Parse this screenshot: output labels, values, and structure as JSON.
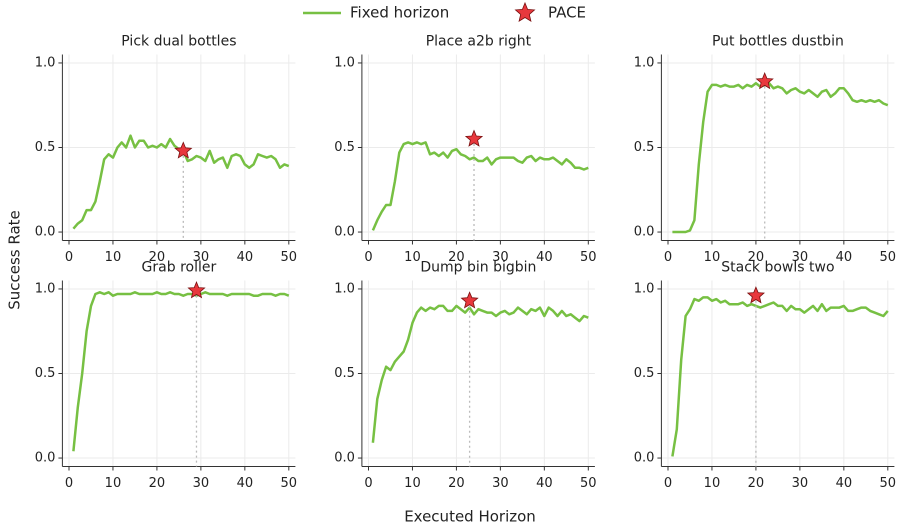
{
  "xlabel": "Executed Horizon",
  "ylabel": "Success Rate",
  "legend": [
    {
      "name": "Fixed horizon",
      "color": "#77c043"
    },
    {
      "name": "PACE",
      "color": "#e8383d"
    }
  ],
  "chart_data": [
    {
      "type": "line",
      "title": "Pick dual bottles",
      "x": [
        1,
        2,
        3,
        4,
        5,
        6,
        7,
        8,
        9,
        10,
        11,
        12,
        13,
        14,
        15,
        16,
        17,
        18,
        19,
        20,
        21,
        22,
        23,
        24,
        25,
        26,
        27,
        28,
        29,
        30,
        31,
        32,
        33,
        34,
        35,
        36,
        37,
        38,
        39,
        40,
        41,
        42,
        43,
        44,
        45,
        46,
        47,
        48,
        49,
        50
      ],
      "values": [
        0.02,
        0.05,
        0.07,
        0.13,
        0.13,
        0.18,
        0.3,
        0.43,
        0.46,
        0.44,
        0.5,
        0.53,
        0.5,
        0.57,
        0.5,
        0.54,
        0.54,
        0.5,
        0.51,
        0.5,
        0.52,
        0.5,
        0.55,
        0.51,
        0.49,
        0.48,
        0.42,
        0.43,
        0.45,
        0.44,
        0.42,
        0.48,
        0.41,
        0.43,
        0.44,
        0.38,
        0.45,
        0.46,
        0.45,
        0.4,
        0.38,
        0.4,
        0.46,
        0.45,
        0.44,
        0.45,
        0.43,
        0.38,
        0.4,
        0.39
      ],
      "pace": {
        "x": 26,
        "y": 0.48
      },
      "xlim": [
        -1.5,
        51.5
      ],
      "xticks": [
        0,
        10,
        20,
        30,
        40,
        50
      ],
      "ylim": [
        -0.05,
        1.05
      ],
      "yticks": [
        {
          "value": 0,
          "label": "0.0"
        },
        {
          "value": 0.5,
          "label": "0.5"
        },
        {
          "value": 1,
          "label": "1.0"
        }
      ],
      "grid": true
    },
    {
      "type": "line",
      "title": "Place a2b right",
      "x": [
        1,
        2,
        3,
        4,
        5,
        6,
        7,
        8,
        9,
        10,
        11,
        12,
        13,
        14,
        15,
        16,
        17,
        18,
        19,
        20,
        21,
        22,
        23,
        24,
        25,
        26,
        27,
        28,
        29,
        30,
        31,
        32,
        33,
        34,
        35,
        36,
        37,
        38,
        39,
        40,
        41,
        42,
        43,
        44,
        45,
        46,
        47,
        48,
        49,
        50
      ],
      "values": [
        0.01,
        0.07,
        0.12,
        0.16,
        0.16,
        0.3,
        0.47,
        0.52,
        0.53,
        0.52,
        0.53,
        0.52,
        0.53,
        0.46,
        0.47,
        0.45,
        0.47,
        0.44,
        0.48,
        0.49,
        0.46,
        0.45,
        0.43,
        0.44,
        0.42,
        0.42,
        0.44,
        0.4,
        0.43,
        0.44,
        0.44,
        0.44,
        0.44,
        0.42,
        0.41,
        0.44,
        0.45,
        0.42,
        0.44,
        0.43,
        0.43,
        0.44,
        0.42,
        0.4,
        0.43,
        0.41,
        0.38,
        0.38,
        0.37,
        0.38
      ],
      "pace": {
        "x": 24,
        "y": 0.55
      },
      "xlim": [
        -1.5,
        51.5
      ],
      "xticks": [
        0,
        10,
        20,
        30,
        40,
        50
      ],
      "ylim": [
        -0.05,
        1.05
      ],
      "yticks": [
        {
          "value": 0,
          "label": "0.0"
        },
        {
          "value": 0.5,
          "label": "0.5"
        },
        {
          "value": 1,
          "label": "1.0"
        }
      ],
      "grid": true
    },
    {
      "type": "line",
      "title": "Put bottles dustbin",
      "x": [
        1,
        2,
        3,
        4,
        5,
        6,
        7,
        8,
        9,
        10,
        11,
        12,
        13,
        14,
        15,
        16,
        17,
        18,
        19,
        20,
        21,
        22,
        23,
        24,
        25,
        26,
        27,
        28,
        29,
        30,
        31,
        32,
        33,
        34,
        35,
        36,
        37,
        38,
        39,
        40,
        41,
        42,
        43,
        44,
        45,
        46,
        47,
        48,
        49,
        50
      ],
      "values": [
        0,
        0,
        0,
        0,
        0.01,
        0.07,
        0.4,
        0.65,
        0.83,
        0.87,
        0.87,
        0.86,
        0.87,
        0.86,
        0.86,
        0.87,
        0.85,
        0.87,
        0.86,
        0.88,
        0.86,
        0.87,
        0.88,
        0.85,
        0.86,
        0.85,
        0.82,
        0.84,
        0.85,
        0.83,
        0.82,
        0.84,
        0.82,
        0.8,
        0.83,
        0.84,
        0.8,
        0.82,
        0.85,
        0.85,
        0.82,
        0.78,
        0.77,
        0.78,
        0.77,
        0.78,
        0.77,
        0.78,
        0.76,
        0.75
      ],
      "pace": {
        "x": 22,
        "y": 0.89
      },
      "xlim": [
        -1.5,
        51.5
      ],
      "xticks": [
        0,
        10,
        20,
        30,
        40,
        50
      ],
      "ylim": [
        -0.05,
        1.05
      ],
      "yticks": [
        {
          "value": 0,
          "label": "0.0"
        },
        {
          "value": 0.5,
          "label": "0.5"
        },
        {
          "value": 1,
          "label": "1.0"
        }
      ],
      "grid": true
    },
    {
      "type": "line",
      "title": "Grab roller",
      "x": [
        1,
        2,
        3,
        4,
        5,
        6,
        7,
        8,
        9,
        10,
        11,
        12,
        13,
        14,
        15,
        16,
        17,
        18,
        19,
        20,
        21,
        22,
        23,
        24,
        25,
        26,
        27,
        28,
        29,
        30,
        31,
        32,
        33,
        34,
        35,
        36,
        37,
        38,
        39,
        40,
        41,
        42,
        43,
        44,
        45,
        46,
        47,
        48,
        49,
        50
      ],
      "values": [
        0.04,
        0.3,
        0.5,
        0.75,
        0.9,
        0.97,
        0.98,
        0.97,
        0.98,
        0.96,
        0.97,
        0.97,
        0.97,
        0.97,
        0.98,
        0.97,
        0.97,
        0.97,
        0.97,
        0.98,
        0.97,
        0.97,
        0.98,
        0.97,
        0.97,
        0.96,
        0.97,
        0.97,
        0.96,
        0.97,
        0.98,
        0.97,
        0.97,
        0.97,
        0.97,
        0.96,
        0.97,
        0.97,
        0.97,
        0.97,
        0.97,
        0.96,
        0.96,
        0.97,
        0.97,
        0.97,
        0.96,
        0.97,
        0.97,
        0.96
      ],
      "pace": {
        "x": 29,
        "y": 0.99
      },
      "xlim": [
        -1.5,
        51.5
      ],
      "xticks": [
        0,
        10,
        20,
        30,
        40,
        50
      ],
      "ylim": [
        -0.05,
        1.05
      ],
      "yticks": [
        {
          "value": 0,
          "label": "0.0"
        },
        {
          "value": 0.5,
          "label": "0.5"
        },
        {
          "value": 1,
          "label": "1.0"
        }
      ],
      "grid": true
    },
    {
      "type": "line",
      "title": "Dump bin bigbin",
      "x": [
        1,
        2,
        3,
        4,
        5,
        6,
        7,
        8,
        9,
        10,
        11,
        12,
        13,
        14,
        15,
        16,
        17,
        18,
        19,
        20,
        21,
        22,
        23,
        24,
        25,
        26,
        27,
        28,
        29,
        30,
        31,
        32,
        33,
        34,
        35,
        36,
        37,
        38,
        39,
        40,
        41,
        42,
        43,
        44,
        45,
        46,
        47,
        48,
        49,
        50
      ],
      "values": [
        0.09,
        0.35,
        0.46,
        0.54,
        0.52,
        0.57,
        0.6,
        0.63,
        0.7,
        0.8,
        0.86,
        0.89,
        0.87,
        0.89,
        0.88,
        0.9,
        0.9,
        0.87,
        0.87,
        0.9,
        0.88,
        0.86,
        0.89,
        0.85,
        0.88,
        0.87,
        0.86,
        0.86,
        0.84,
        0.86,
        0.87,
        0.85,
        0.86,
        0.89,
        0.87,
        0.85,
        0.88,
        0.87,
        0.89,
        0.84,
        0.89,
        0.87,
        0.84,
        0.87,
        0.84,
        0.85,
        0.83,
        0.81,
        0.84,
        0.83
      ],
      "pace": {
        "x": 23,
        "y": 0.93
      },
      "xlim": [
        -1.5,
        51.5
      ],
      "xticks": [
        0,
        10,
        20,
        30,
        40,
        50
      ],
      "ylim": [
        -0.05,
        1.05
      ],
      "yticks": [
        {
          "value": 0,
          "label": "0.0"
        },
        {
          "value": 0.5,
          "label": "0.5"
        },
        {
          "value": 1,
          "label": "1.0"
        }
      ],
      "grid": true
    },
    {
      "type": "line",
      "title": "Stack bowls two",
      "x": [
        1,
        2,
        3,
        4,
        5,
        6,
        7,
        8,
        9,
        10,
        11,
        12,
        13,
        14,
        15,
        16,
        17,
        18,
        19,
        20,
        21,
        22,
        23,
        24,
        25,
        26,
        27,
        28,
        29,
        30,
        31,
        32,
        33,
        34,
        35,
        36,
        37,
        38,
        39,
        40,
        41,
        42,
        43,
        44,
        45,
        46,
        47,
        48,
        49,
        50
      ],
      "values": [
        0.01,
        0.17,
        0.58,
        0.84,
        0.88,
        0.94,
        0.93,
        0.95,
        0.95,
        0.93,
        0.94,
        0.92,
        0.93,
        0.91,
        0.91,
        0.91,
        0.92,
        0.9,
        0.91,
        0.9,
        0.89,
        0.9,
        0.91,
        0.92,
        0.9,
        0.9,
        0.87,
        0.9,
        0.88,
        0.88,
        0.86,
        0.88,
        0.9,
        0.87,
        0.91,
        0.87,
        0.89,
        0.89,
        0.89,
        0.9,
        0.87,
        0.87,
        0.88,
        0.89,
        0.89,
        0.87,
        0.86,
        0.85,
        0.84,
        0.87
      ],
      "pace": {
        "x": 20,
        "y": 0.96
      },
      "xlim": [
        -1.5,
        51.5
      ],
      "xticks": [
        0,
        10,
        20,
        30,
        40,
        50
      ],
      "ylim": [
        -0.05,
        1.05
      ],
      "yticks": [
        {
          "value": 0,
          "label": "0.0"
        },
        {
          "value": 0.5,
          "label": "0.5"
        },
        {
          "value": 1,
          "label": "1.0"
        }
      ],
      "grid": true
    }
  ]
}
